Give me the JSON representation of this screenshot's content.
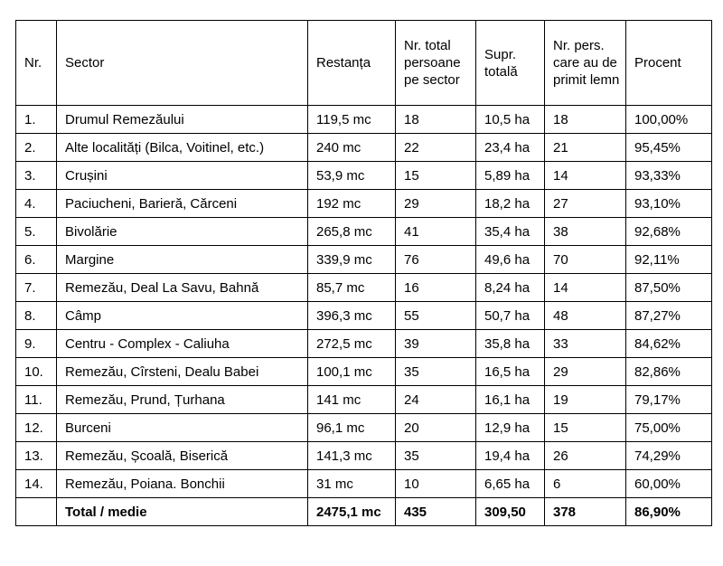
{
  "headers": [
    "Nr.",
    "Sector",
    "Restanța",
    "Nr. total persoane pe sector",
    "Supr. totală",
    "Nr. pers. care au de primit lemn",
    "Procent"
  ],
  "rows": [
    [
      "1.",
      "Drumul Remezăului",
      "119,5 mc",
      "18",
      "10,5 ha",
      "18",
      "100,00%"
    ],
    [
      "2.",
      "Alte localități (Bilca, Voitinel, etc.)",
      "240 mc",
      "22",
      "23,4 ha",
      "21",
      "95,45%"
    ],
    [
      "3.",
      "Crușini",
      "53,9 mc",
      "15",
      "5,89 ha",
      "14",
      "93,33%"
    ],
    [
      "4.",
      "Paciucheni, Barieră, Cărceni",
      "192 mc",
      "29",
      "18,2 ha",
      "27",
      "93,10%"
    ],
    [
      "5.",
      "Bivolărie",
      "265,8 mc",
      "41",
      "35,4 ha",
      "38",
      "92,68%"
    ],
    [
      "6.",
      "Margine",
      "339,9 mc",
      "76",
      "49,6 ha",
      "70",
      "92,11%"
    ],
    [
      "7.",
      "Remezău, Deal La Savu, Bahnă",
      "85,7 mc",
      "16",
      "8,24 ha",
      "14",
      "87,50%"
    ],
    [
      "8.",
      "Câmp",
      "396,3 mc",
      "55",
      "50,7 ha",
      "48",
      "87,27%"
    ],
    [
      "9.",
      "Centru - Complex - Caliuha",
      "272,5 mc",
      "39",
      "35,8 ha",
      "33",
      "84,62%"
    ],
    [
      "10.",
      "Remezău, Cîrsteni, Dealu Babei",
      "100,1 mc",
      "35",
      "16,5 ha",
      "29",
      "82,86%"
    ],
    [
      "11.",
      "Remezău, Prund, Țurhana",
      "141 mc",
      "24",
      "16,1 ha",
      "19",
      "79,17%"
    ],
    [
      "12.",
      "Burceni",
      "96,1 mc",
      "20",
      "12,9 ha",
      "15",
      "75,00%"
    ],
    [
      "13.",
      "Remezău, Școală, Biserică",
      "141,3 mc",
      "35",
      "19,4 ha",
      "26",
      "74,29%"
    ],
    [
      "14.",
      "Remezău, Poiana. Bonchii",
      "31 mc",
      "10",
      "6,65 ha",
      "6",
      "60,00%"
    ]
  ],
  "total": [
    "",
    "Total / medie",
    "2475,1 mc",
    "435",
    "309,50",
    "378",
    "86,90%"
  ]
}
